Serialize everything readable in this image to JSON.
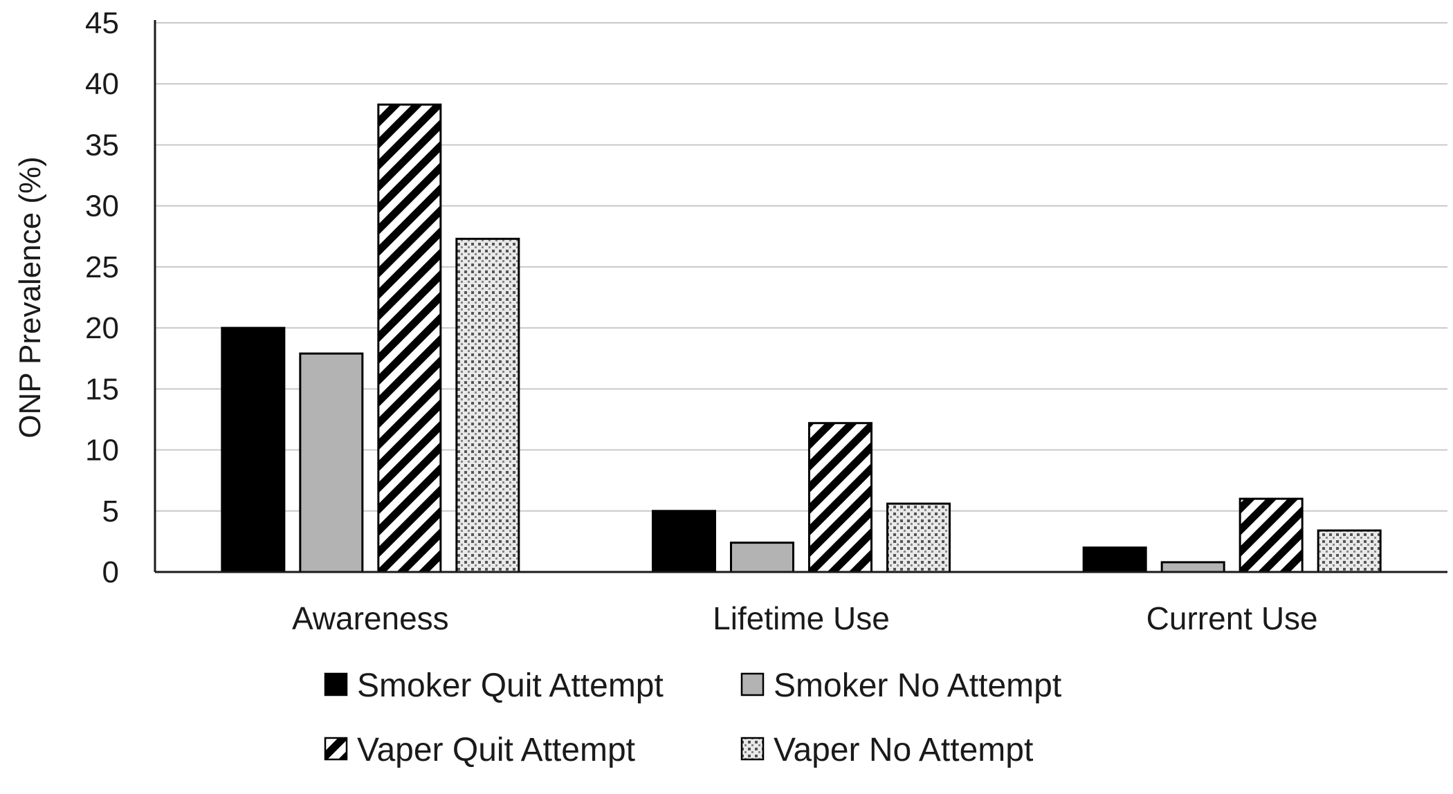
{
  "chart_data": {
    "type": "bar",
    "categories": [
      "Awareness",
      "Lifetime Use",
      "Current Use"
    ],
    "series": [
      {
        "name": "Smoker Quit Attempt",
        "values": [
          20.0,
          5.0,
          2.0
        ],
        "fill": "solid-black"
      },
      {
        "name": "Smoker No Attempt",
        "values": [
          17.9,
          2.4,
          0.8
        ],
        "fill": "solid-gray"
      },
      {
        "name": "Vaper Quit Attempt",
        "values": [
          38.3,
          12.2,
          6.0
        ],
        "fill": "diagonal-stripes"
      },
      {
        "name": "Vaper No Attempt",
        "values": [
          27.3,
          5.6,
          3.4
        ],
        "fill": "dotted"
      }
    ],
    "ylabel": "ONP Prevalence (%)",
    "ylim": [
      0,
      45
    ],
    "yticks": [
      "0",
      "5",
      "10",
      "15",
      "20",
      "25",
      "30",
      "35",
      "40",
      "45"
    ],
    "grid": true,
    "legend_position": "bottom",
    "colors": {
      "solid_black": "#000000",
      "solid_gray": "#b3b3b3",
      "grid": "#c8c8c8",
      "axis": "#1a1a1a"
    }
  }
}
